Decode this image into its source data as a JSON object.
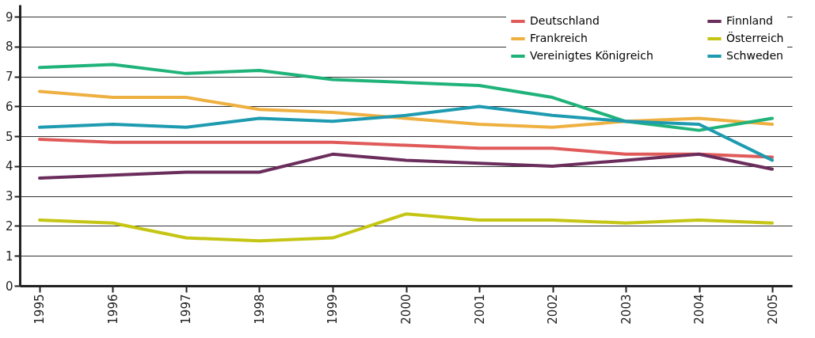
{
  "chart_data": {
    "type": "line",
    "categories": [
      "1995",
      "1996",
      "1997",
      "1998",
      "1999",
      "2000",
      "2001",
      "2002",
      "2003",
      "2004",
      "2005"
    ],
    "ylim": [
      0,
      9.4
    ],
    "yticks": [
      0,
      1,
      2,
      3,
      4,
      5,
      6,
      7,
      8,
      9
    ],
    "grid": "y",
    "legend": "top right",
    "line_style": "solid",
    "marker": "none",
    "series": [
      {
        "name": "Deutschland",
        "color": "#e05a5a",
        "values": [
          4.9,
          4.8,
          4.8,
          4.8,
          4.8,
          4.7,
          4.6,
          4.6,
          4.4,
          4.4,
          4.3
        ]
      },
      {
        "name": "Frankreich",
        "color": "#eeb040",
        "values": [
          6.5,
          6.3,
          6.3,
          5.9,
          5.8,
          5.6,
          5.4,
          5.3,
          5.5,
          5.6,
          5.4
        ]
      },
      {
        "name": "Vereinigtes Königreich",
        "color": "#1fb37a",
        "values": [
          7.3,
          7.4,
          7.1,
          7.2,
          6.9,
          6.8,
          6.7,
          6.3,
          5.5,
          5.2,
          5.6
        ]
      },
      {
        "name": "Finnland",
        "color": "#6b2d5c",
        "values": [
          3.6,
          3.7,
          3.8,
          3.8,
          4.4,
          4.2,
          4.1,
          4.0,
          4.2,
          4.4,
          3.9
        ]
      },
      {
        "name": "Österreich",
        "color": "#c5c514",
        "values": [
          2.2,
          2.1,
          1.6,
          1.5,
          1.6,
          2.4,
          2.2,
          2.2,
          2.1,
          2.2,
          2.1
        ]
      },
      {
        "name": "Schweden",
        "color": "#1e9bb0",
        "values": [
          5.3,
          5.4,
          5.3,
          5.6,
          5.5,
          5.7,
          6.0,
          5.7,
          5.5,
          5.4,
          4.2
        ]
      }
    ]
  }
}
